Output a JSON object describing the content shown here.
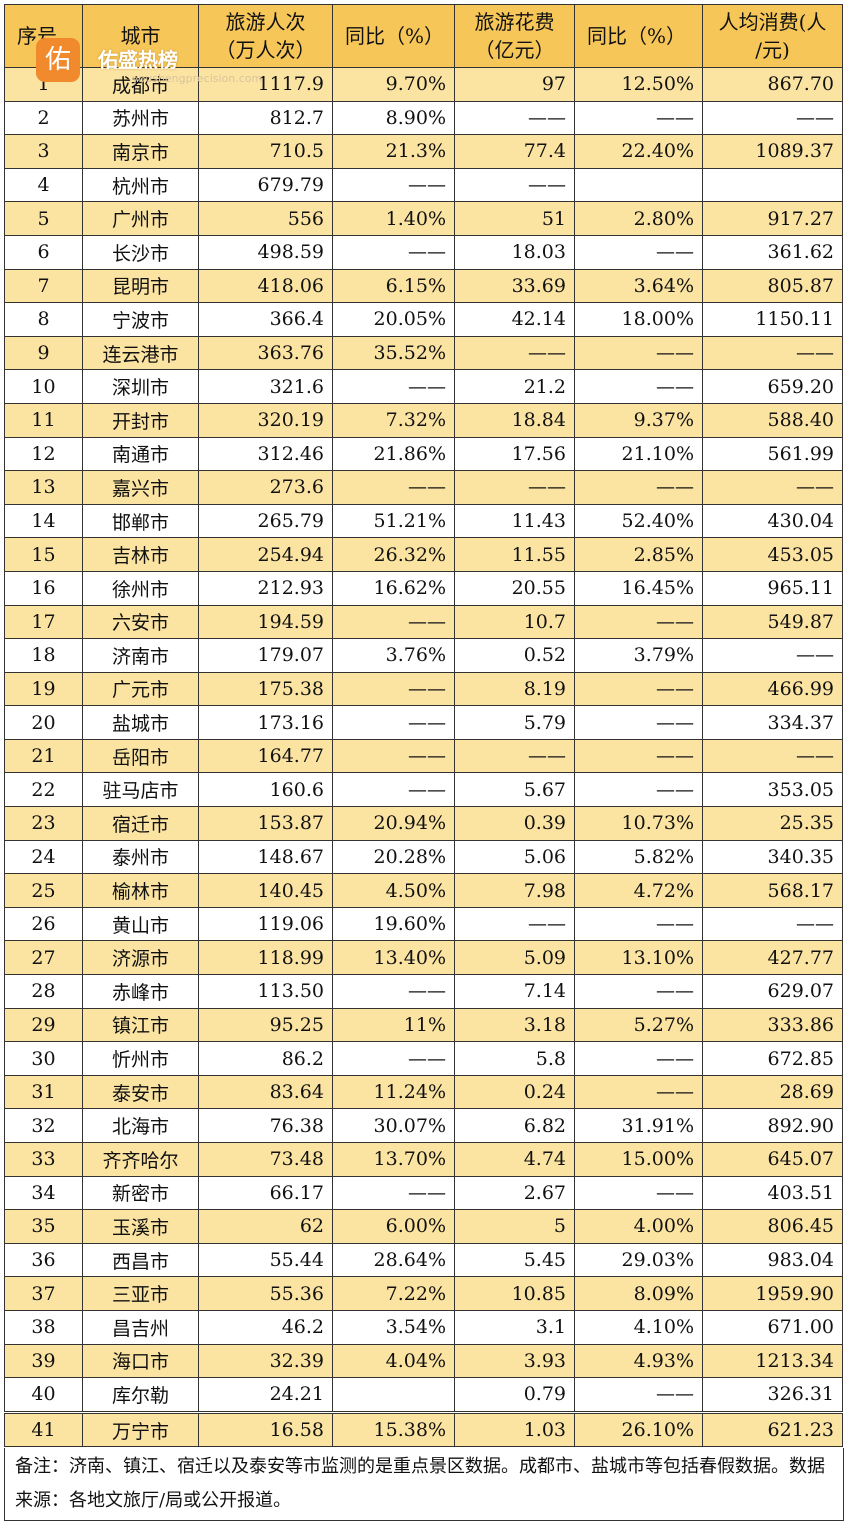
{
  "headers": [
    "序号",
    "城市",
    "旅游人次\n（万人次）",
    "同比（%）",
    "旅游花费\n（亿元）",
    "同比（%）",
    "人均消费(人\n/元)"
  ],
  "watermark": {
    "logo_char": "佑",
    "brand": "佑盛热榜",
    "url": "youshengprecision.com"
  },
  "rows": [
    [
      "1",
      "成都市",
      "1117.9",
      "9.70%",
      "97",
      "12.50%",
      "867.70"
    ],
    [
      "2",
      "苏州市",
      "812.7",
      "8.90%",
      "——",
      "——",
      "——"
    ],
    [
      "3",
      "南京市",
      "710.5",
      "21.3%",
      "77.4",
      "22.40%",
      "1089.37"
    ],
    [
      "4",
      "杭州市",
      "679.79",
      "——",
      "——",
      "",
      ""
    ],
    [
      "5",
      "广州市",
      "556",
      "1.40%",
      "51",
      "2.80%",
      "917.27"
    ],
    [
      "6",
      "长沙市",
      "498.59",
      "——",
      "18.03",
      "——",
      "361.62"
    ],
    [
      "7",
      "昆明市",
      "418.06",
      "6.15%",
      "33.69",
      "3.64%",
      "805.87"
    ],
    [
      "8",
      "宁波市",
      "366.4",
      "20.05%",
      "42.14",
      "18.00%",
      "1150.11"
    ],
    [
      "9",
      "连云港市",
      "363.76",
      "35.52%",
      "——",
      "——",
      "——"
    ],
    [
      "10",
      "深圳市",
      "321.6",
      "——",
      "21.2",
      "——",
      "659.20"
    ],
    [
      "11",
      "开封市",
      "320.19",
      "7.32%",
      "18.84",
      "9.37%",
      "588.40"
    ],
    [
      "12",
      "南通市",
      "312.46",
      "21.86%",
      "17.56",
      "21.10%",
      "561.99"
    ],
    [
      "13",
      "嘉兴市",
      "273.6",
      "——",
      "——",
      "——",
      "——"
    ],
    [
      "14",
      "邯郸市",
      "265.79",
      "51.21%",
      "11.43",
      "52.40%",
      "430.04"
    ],
    [
      "15",
      "吉林市",
      "254.94",
      "26.32%",
      "11.55",
      "2.85%",
      "453.05"
    ],
    [
      "16",
      "徐州市",
      "212.93",
      "16.62%",
      "20.55",
      "16.45%",
      "965.11"
    ],
    [
      "17",
      "六安市",
      "194.59",
      "——",
      "10.7",
      "——",
      "549.87"
    ],
    [
      "18",
      "济南市",
      "179.07",
      "3.76%",
      "0.52",
      "3.79%",
      "——"
    ],
    [
      "19",
      "广元市",
      "175.38",
      "——",
      "8.19",
      "——",
      "466.99"
    ],
    [
      "20",
      "盐城市",
      "173.16",
      "——",
      "5.79",
      "——",
      "334.37"
    ],
    [
      "21",
      "岳阳市",
      "164.77",
      "——",
      "——",
      "——",
      "——"
    ],
    [
      "22",
      "驻马店市",
      "160.6",
      "——",
      "5.67",
      "——",
      "353.05"
    ],
    [
      "23",
      "宿迁市",
      "153.87",
      "20.94%",
      "0.39",
      "10.73%",
      "25.35"
    ],
    [
      "24",
      "泰州市",
      "148.67",
      "20.28%",
      "5.06",
      "5.82%",
      "340.35"
    ],
    [
      "25",
      "榆林市",
      "140.45",
      "4.50%",
      "7.98",
      "4.72%",
      "568.17"
    ],
    [
      "26",
      "黄山市",
      "119.06",
      "19.60%",
      "——",
      "——",
      "——"
    ],
    [
      "27",
      "济源市",
      "118.99",
      "13.40%",
      "5.09",
      "13.10%",
      "427.77"
    ],
    [
      "28",
      "赤峰市",
      "113.50",
      "——",
      "7.14",
      "——",
      "629.07"
    ],
    [
      "29",
      "镇江市",
      "95.25",
      "11%",
      "3.18",
      "5.27%",
      "333.86"
    ],
    [
      "30",
      "忻州市",
      "86.2",
      "——",
      "5.8",
      "——",
      "672.85"
    ],
    [
      "31",
      "泰安市",
      "83.64",
      "11.24%",
      "0.24",
      "——",
      "28.69"
    ],
    [
      "32",
      "北海市",
      "76.38",
      "30.07%",
      "6.82",
      "31.91%",
      "892.90"
    ],
    [
      "33",
      "齐齐哈尔",
      "73.48",
      "13.70%",
      "4.74",
      "15.00%",
      "645.07"
    ],
    [
      "34",
      "新密市",
      "66.17",
      "——",
      "2.67",
      "——",
      "403.51"
    ],
    [
      "35",
      "玉溪市",
      "62",
      "6.00%",
      "5",
      "4.00%",
      "806.45"
    ],
    [
      "36",
      "西昌市",
      "55.44",
      "28.64%",
      "5.45",
      "29.03%",
      "983.04"
    ],
    [
      "37",
      "三亚市",
      "55.36",
      "7.22%",
      "10.85",
      "8.09%",
      "1959.90"
    ],
    [
      "38",
      "昌吉州",
      "46.2",
      "3.54%",
      "3.1",
      "4.10%",
      "671.00"
    ],
    [
      "39",
      "海口市",
      "32.39",
      "4.04%",
      "3.93",
      "4.93%",
      "1213.34"
    ],
    [
      "40",
      "库尔勒",
      "24.21",
      "",
      "0.79",
      "——",
      "326.31"
    ],
    [
      "41",
      "万宁市",
      "16.58",
      "15.38%",
      "1.03",
      "26.10%",
      "621.23"
    ]
  ],
  "note": "备注：济南、镇江、宿迁以及泰安等市监测的是重点景区数据。成都市、盐城市等包括春假数据。数据来源：各地文旅厅/局或公开报道。",
  "colors": {
    "header_bg": "#f6c758",
    "row_highlight": "#fbe4a2",
    "row_plain": "#ffffff"
  }
}
